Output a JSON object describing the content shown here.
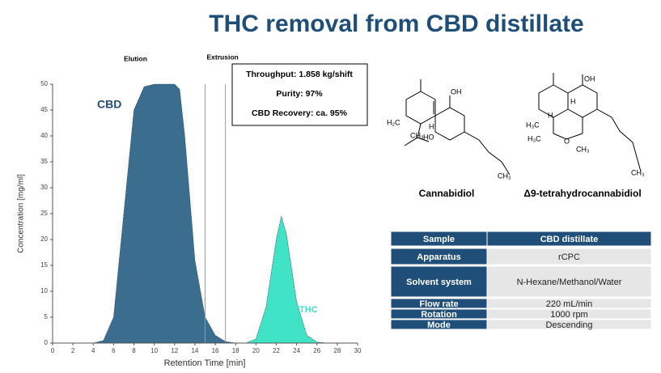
{
  "title": "THC removal from CBD distillate",
  "chart_data": {
    "type": "area",
    "xlabel": "Retention Time [min]",
    "ylabel": "Concentration [mg/ml]",
    "x": [
      4,
      5,
      6,
      7,
      8,
      9,
      10,
      11,
      12,
      12.5,
      13,
      14,
      15,
      16,
      17,
      18,
      19,
      20,
      21,
      22,
      22.5,
      23,
      24,
      25,
      26,
      27
    ],
    "series": [
      {
        "name": "CBD",
        "color": "#3b6d8f",
        "values": [
          0,
          0.5,
          5,
          25,
          45,
          49.5,
          50,
          50,
          50,
          49,
          40,
          16,
          5,
          1.5,
          0.3,
          0,
          null,
          null,
          null,
          null,
          null,
          null,
          null,
          null,
          null,
          null
        ]
      },
      {
        "name": "THC",
        "color": "#40e3c6",
        "values": [
          null,
          null,
          null,
          null,
          null,
          null,
          null,
          null,
          null,
          null,
          null,
          null,
          null,
          null,
          null,
          null,
          0,
          0.8,
          7,
          20,
          24.5,
          21,
          8,
          1.5,
          0.2,
          0
        ]
      }
    ],
    "xlim": [
      0,
      30
    ],
    "xticks": [
      0,
      2,
      4,
      6,
      8,
      10,
      12,
      14,
      16,
      18,
      20,
      22,
      24,
      26,
      28,
      30
    ],
    "ylim": [
      0,
      50
    ],
    "yticks": [
      0,
      5,
      10,
      15,
      20,
      25,
      30,
      35,
      40,
      45,
      50
    ],
    "vlines": [
      15,
      17
    ],
    "regions": [
      "Elution",
      "Extrusion"
    ]
  },
  "info_box": [
    "Throughput: 1.858 kg/shift",
    "Purity: 97%",
    "CBD Recovery: ca. 95%"
  ],
  "molecules": [
    {
      "name": "Cannabidiol",
      "atoms": [
        "OH",
        "HO",
        "H",
        "H₂C",
        "CH₃",
        "CH₃"
      ]
    },
    {
      "name": "Δ9-tetrahydrocannabidiol",
      "atoms": [
        "OH",
        "H",
        "H",
        "H₃C",
        "H₃C",
        "O",
        "CH₃",
        "CH₃"
      ]
    }
  ],
  "table": {
    "header": [
      "Sample",
      "CBD distillate"
    ],
    "rows": [
      [
        "Apparatus",
        "rCPC"
      ],
      [
        "Solvent system",
        "N-Hexane/Methanol/Water"
      ],
      [
        "Flow rate",
        "220 mL/min"
      ],
      [
        "Rotation",
        "1000 rpm"
      ],
      [
        "Mode",
        "Descending"
      ]
    ]
  }
}
